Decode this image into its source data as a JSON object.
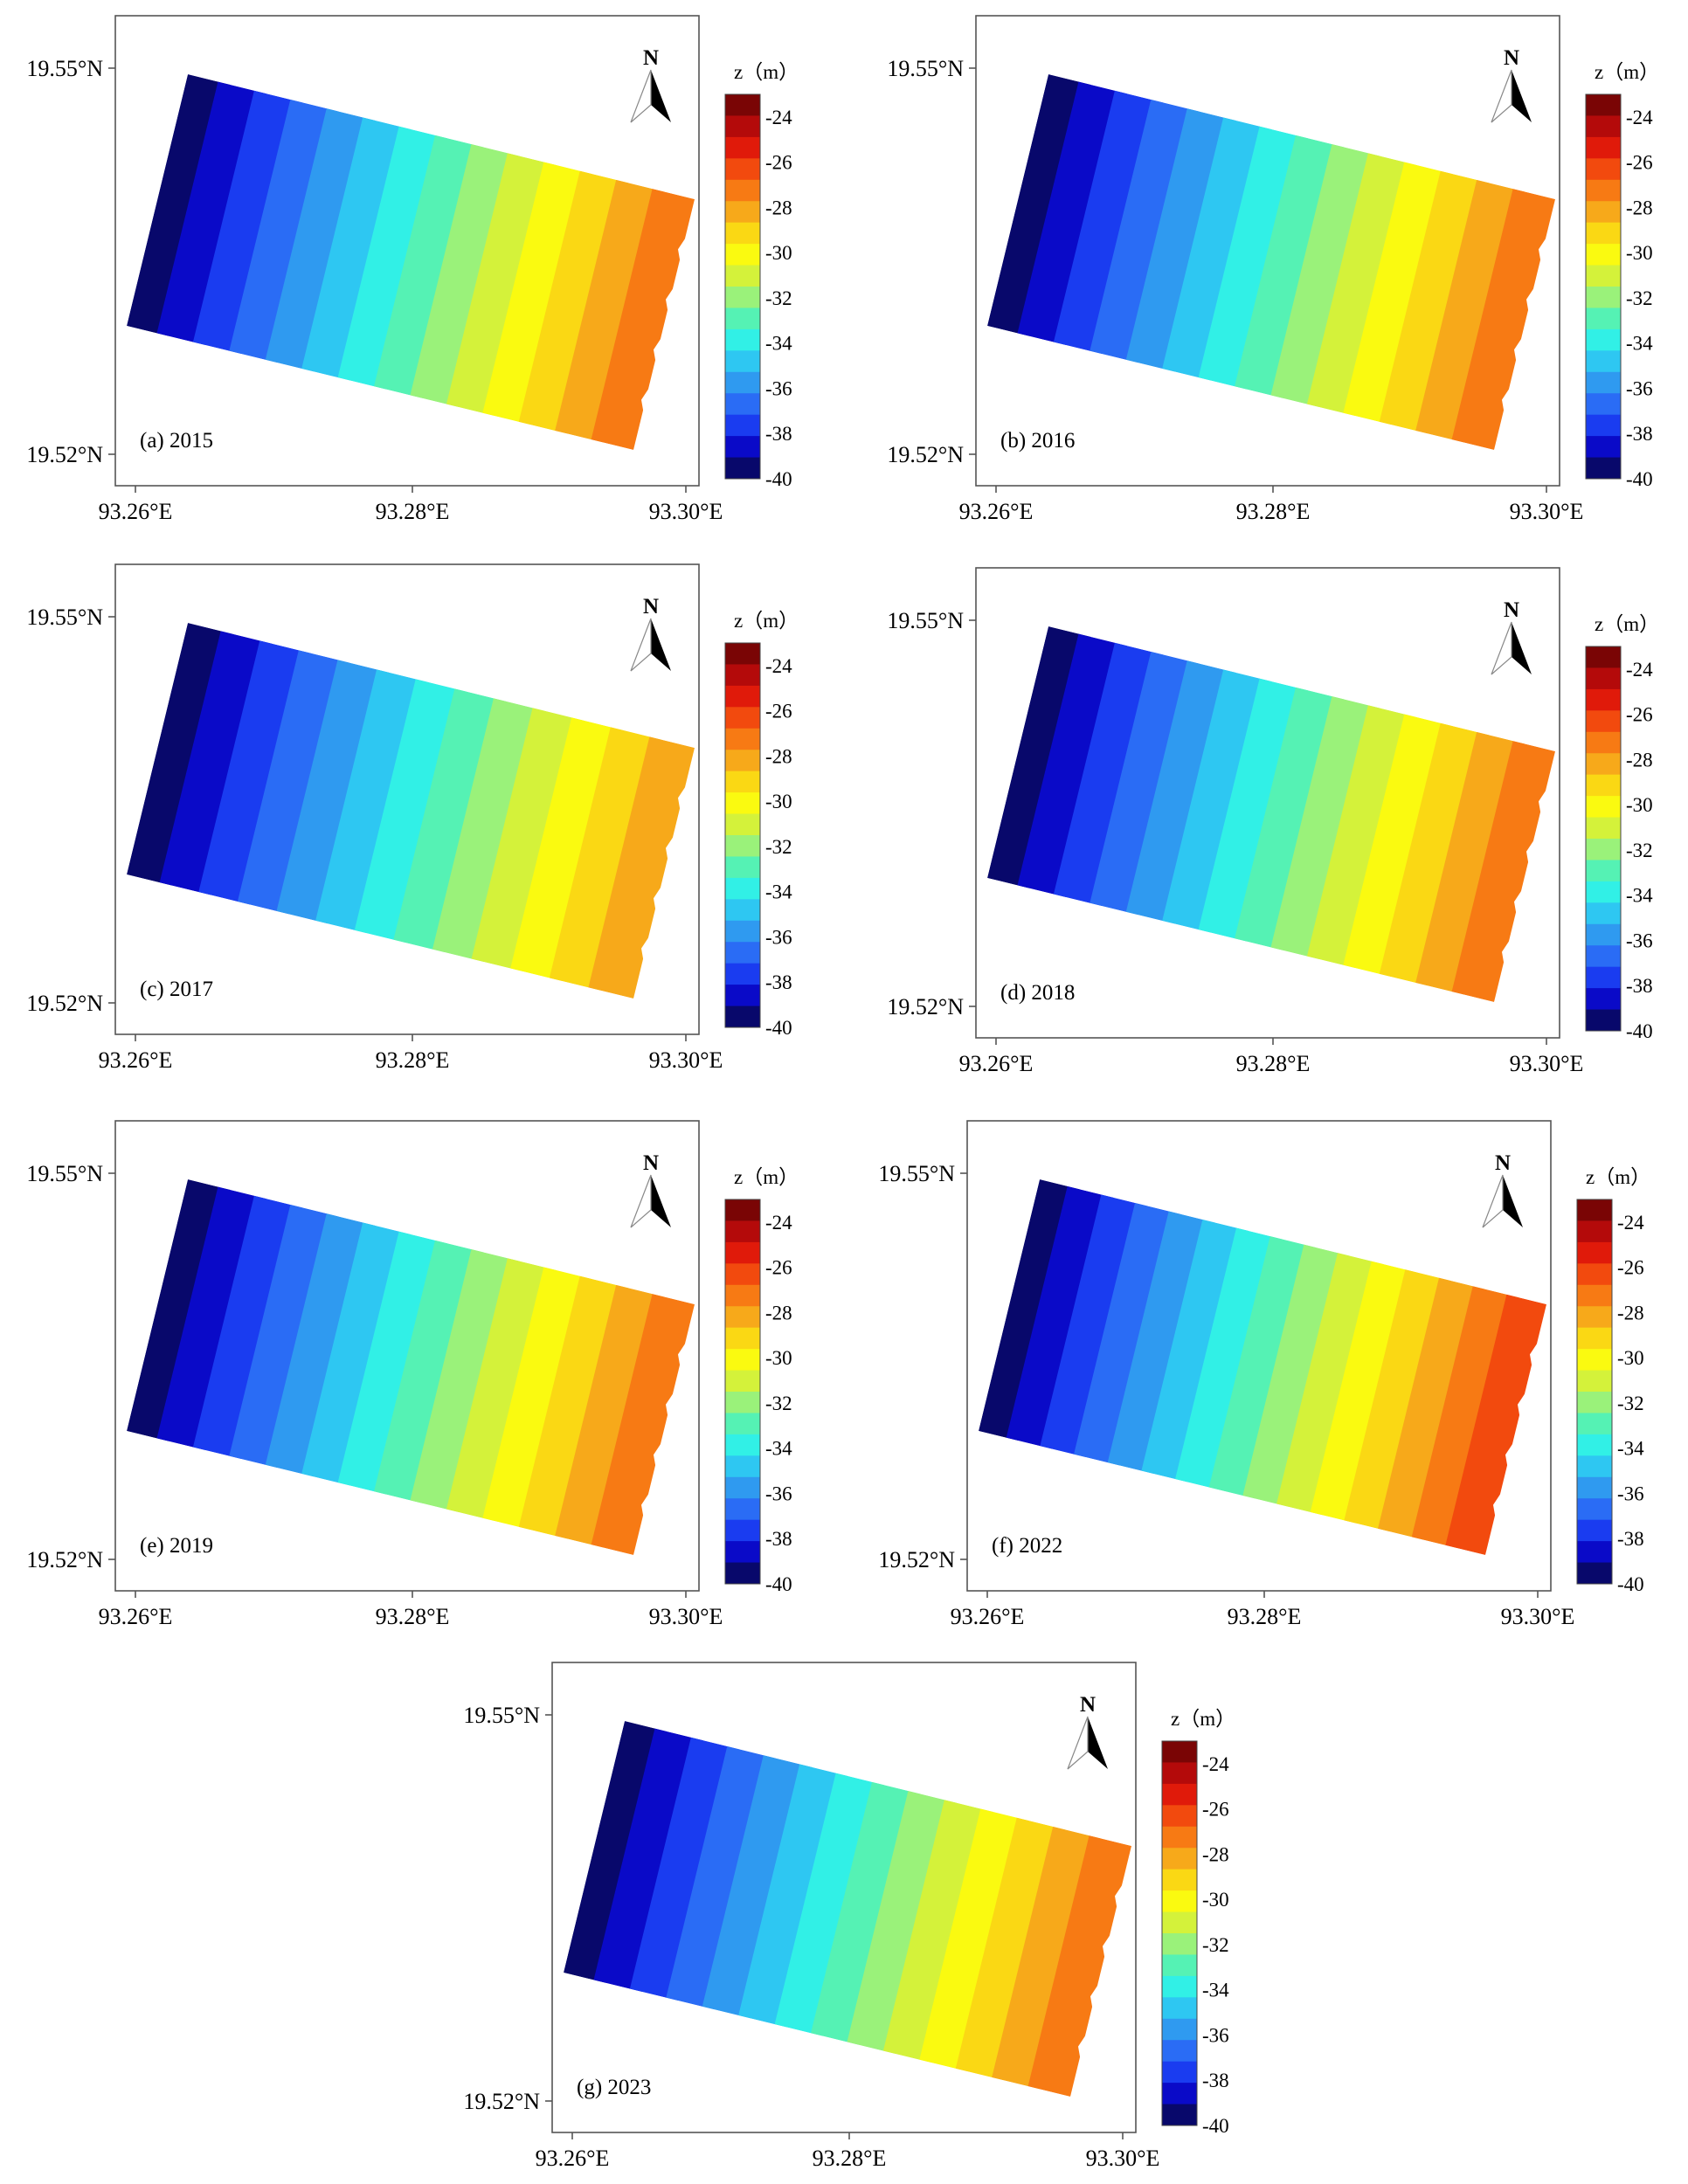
{
  "figure": {
    "colorbar": {
      "unit_label": "z（m）",
      "tick_labels": [
        "-24",
        "-26",
        "-28",
        "-30",
        "-32",
        "-34",
        "-36",
        "-38",
        "-40"
      ],
      "range": [
        -40,
        -23
      ],
      "colors": [
        "#08086b",
        "#0a0ac8",
        "#1a3cf0",
        "#2a6cf5",
        "#2f9af0",
        "#2ec7f2",
        "#31f0e6",
        "#55f2b4",
        "#9af27a",
        "#d4f23a",
        "#fafa10",
        "#fad814",
        "#f7a91a",
        "#f77a14",
        "#f24a0e",
        "#e01a0a",
        "#b40a0a",
        "#7a0505"
      ]
    },
    "axes": {
      "lat_labels": [
        "19.55°N",
        "19.52°N"
      ],
      "lon_labels": [
        "93.26°E",
        "93.28°E",
        "93.30°E"
      ]
    },
    "north_arrow": {
      "label": "N"
    },
    "panels": [
      {
        "label": "(a) 2015",
        "min_depth": -40,
        "max_depth": -27
      },
      {
        "label": "(b) 2016",
        "min_depth": -40,
        "max_depth": -27
      },
      {
        "label": "(c) 2017",
        "min_depth": -40,
        "max_depth": -28
      },
      {
        "label": "(d) 2018",
        "min_depth": -40,
        "max_depth": -27
      },
      {
        "label": "(e) 2019",
        "min_depth": -40,
        "max_depth": -27
      },
      {
        "label": "(f) 2022",
        "min_depth": -40,
        "max_depth": -26
      },
      {
        "label": "(g) 2023",
        "min_depth": -40,
        "max_depth": -27
      }
    ]
  }
}
